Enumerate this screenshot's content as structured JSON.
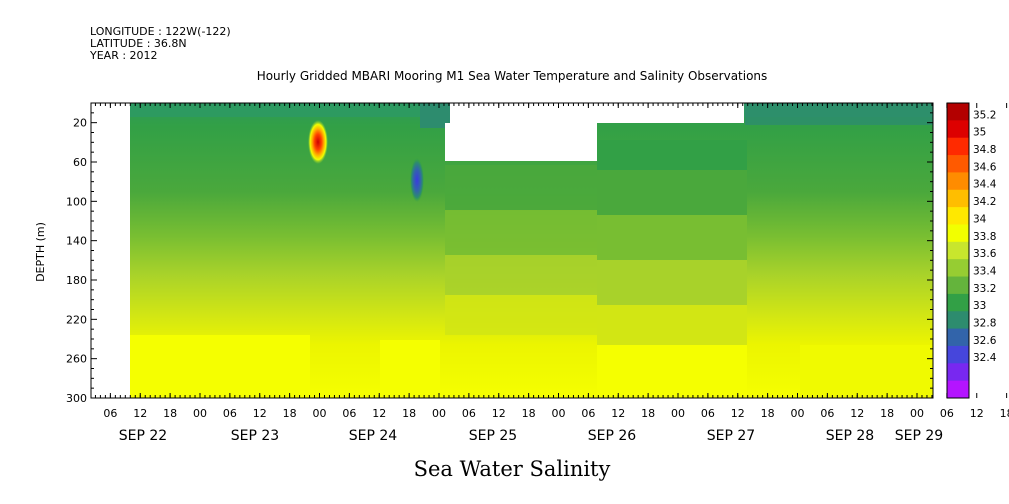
{
  "header": {
    "longitude": "LONGITUDE : 122W(-122)",
    "latitude": "LATITUDE : 36.8N",
    "year": "YEAR : 2012"
  },
  "chart_data": {
    "type": "heatmap",
    "title": "Hourly Gridded MBARI Mooring M1 Sea Water Temperature and Salinity Observations",
    "bottom_title": "Sea Water Salinity",
    "ylabel": "DEPTH (m)",
    "ylim": [
      300,
      0
    ],
    "y_ticks": [
      20,
      60,
      100,
      140,
      180,
      220,
      260,
      300
    ],
    "x_hour_ticks": [
      "06",
      "12",
      "18",
      "00",
      "06",
      "12",
      "18",
      "00",
      "06",
      "12",
      "18",
      "00",
      "06",
      "12",
      "18",
      "00",
      "06",
      "12",
      "18",
      "00",
      "06",
      "12",
      "18",
      "00",
      "06",
      "12",
      "18",
      "00",
      "06",
      "12",
      "18",
      "00"
    ],
    "x_date_labels": [
      "SEP 22",
      "SEP 23",
      "SEP 24",
      "SEP 25",
      "SEP 26",
      "SEP 27",
      "SEP 28",
      "SEP 29"
    ],
    "colorbar": {
      "levels": [
        "35.2",
        "35",
        "34.8",
        "34.6",
        "34.4",
        "34.2",
        "34",
        "33.8",
        "33.6",
        "33.4",
        "33.2",
        "33",
        "32.8",
        "32.6",
        "32.4"
      ],
      "colors": [
        "#b30000",
        "#dd0000",
        "#ff2a00",
        "#ff5a00",
        "#ff8c00",
        "#ffbe00",
        "#ffe800",
        "#f2ff00",
        "#c8e62d",
        "#96cd32",
        "#64b43c",
        "#32a046",
        "#2d8c6e",
        "#3264aa",
        "#4646dc",
        "#7828f0",
        "#b414ff"
      ]
    },
    "salinity_depth_profile": [
      {
        "depth": 10,
        "salinity": 33.2
      },
      {
        "depth": 30,
        "salinity": 33.4
      },
      {
        "depth": 60,
        "salinity": 33.5
      },
      {
        "depth": 100,
        "salinity": 33.6
      },
      {
        "depth": 140,
        "salinity": 33.8
      },
      {
        "depth": 180,
        "salinity": 33.9
      },
      {
        "depth": 220,
        "salinity": 34.0
      },
      {
        "depth": 260,
        "salinity": 34.1
      },
      {
        "depth": 300,
        "salinity": 34.1
      }
    ],
    "anomalies": [
      {
        "time": "SEP 24 00",
        "depth": 35,
        "salinity": 35.2
      },
      {
        "time": "SEP 24 20",
        "depth": 80,
        "salinity": 32.8
      }
    ]
  }
}
